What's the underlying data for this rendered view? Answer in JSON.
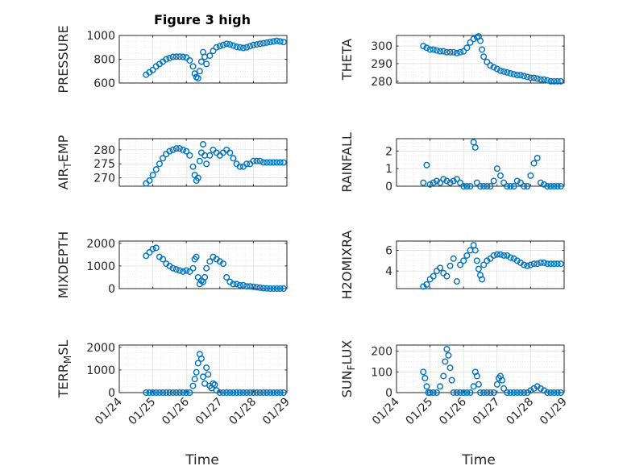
{
  "figure": {
    "title": "Figure 3 high",
    "marker_color": "#0072BD",
    "grid": true,
    "x_tick_labels": [
      "01/24",
      "01/25",
      "01/26",
      "01/27",
      "01/28",
      "01/29"
    ],
    "x_axis_label": "Time"
  },
  "chart_data": [
    {
      "type": "scatter",
      "ylabel": "PRESSURE",
      "ylim": [
        600,
        1000
      ],
      "yticks": [
        600,
        800,
        1000
      ],
      "xlim": [
        0,
        5
      ],
      "x": [
        0.8,
        0.9,
        1.0,
        1.1,
        1.2,
        1.3,
        1.4,
        1.5,
        1.6,
        1.7,
        1.8,
        1.9,
        2.0,
        2.1,
        2.2,
        2.25,
        2.3,
        2.35,
        2.4,
        2.45,
        2.5,
        2.55,
        2.6,
        2.7,
        2.8,
        2.9,
        3.0,
        3.1,
        3.2,
        3.3,
        3.4,
        3.5,
        3.6,
        3.7,
        3.8,
        3.9,
        4.0,
        4.1,
        4.2,
        4.3,
        4.4,
        4.5,
        4.6,
        4.7,
        4.8,
        4.9
      ],
      "y": [
        670,
        690,
        710,
        740,
        760,
        780,
        800,
        810,
        820,
        822,
        822,
        820,
        815,
        790,
        740,
        680,
        650,
        640,
        700,
        780,
        860,
        820,
        760,
        830,
        870,
        900,
        910,
        920,
        930,
        925,
        915,
        905,
        900,
        895,
        900,
        910,
        920,
        925,
        930,
        935,
        940,
        945,
        950,
        955,
        950,
        945
      ]
    },
    {
      "type": "scatter",
      "ylabel": "THETA",
      "ylim": [
        279,
        306
      ],
      "yticks": [
        280,
        290,
        300
      ],
      "xlim": [
        0,
        5
      ],
      "x": [
        0.8,
        0.9,
        1.0,
        1.1,
        1.2,
        1.3,
        1.4,
        1.5,
        1.6,
        1.7,
        1.8,
        1.9,
        2.0,
        2.1,
        2.2,
        2.3,
        2.4,
        2.45,
        2.5,
        2.55,
        2.6,
        2.7,
        2.8,
        2.9,
        3.0,
        3.1,
        3.2,
        3.3,
        3.4,
        3.5,
        3.6,
        3.7,
        3.8,
        3.9,
        4.0,
        4.1,
        4.2,
        4.3,
        4.4,
        4.5,
        4.6,
        4.7,
        4.8,
        4.9
      ],
      "y": [
        300,
        299,
        298,
        298,
        297.5,
        297,
        297,
        296.5,
        296.5,
        296.5,
        296,
        296.5,
        297,
        299,
        302,
        304,
        305,
        305.5,
        303,
        298,
        294,
        291,
        289,
        288,
        287,
        286,
        285.5,
        285,
        284.5,
        284,
        283.5,
        283.5,
        283,
        282.5,
        282,
        282,
        281.5,
        281,
        281,
        280.5,
        280,
        280,
        280,
        280
      ]
    },
    {
      "type": "scatter",
      "ylabel": "AIR_TEMP",
      "ylim": [
        267,
        284
      ],
      "yticks": [
        270,
        275,
        280
      ],
      "xlim": [
        0,
        5
      ],
      "x": [
        0.8,
        0.9,
        1.0,
        1.1,
        1.2,
        1.3,
        1.4,
        1.5,
        1.6,
        1.7,
        1.8,
        1.9,
        2.0,
        2.1,
        2.2,
        2.25,
        2.3,
        2.35,
        2.4,
        2.45,
        2.5,
        2.55,
        2.6,
        2.7,
        2.8,
        2.9,
        3.0,
        3.1,
        3.2,
        3.3,
        3.4,
        3.5,
        3.6,
        3.7,
        3.8,
        3.9,
        4.0,
        4.1,
        4.2,
        4.3,
        4.4,
        4.5,
        4.6,
        4.7,
        4.8,
        4.9
      ],
      "y": [
        268,
        269,
        271,
        273,
        275,
        277,
        278.5,
        279.5,
        280,
        280.5,
        280.5,
        280,
        279.5,
        278,
        274,
        271,
        269,
        270,
        276,
        279,
        282,
        278,
        275,
        278,
        280,
        279,
        278,
        279,
        280,
        279,
        277,
        275,
        274,
        274,
        275,
        275,
        276,
        276,
        276,
        275.5,
        275.5,
        275.5,
        275.5,
        275.5,
        275.5,
        275.5
      ]
    },
    {
      "type": "scatter",
      "ylabel": "RAINFALL",
      "ylim": [
        0,
        2.7
      ],
      "yticks": [
        0,
        1,
        2
      ],
      "xlim": [
        0,
        5
      ],
      "x": [
        0.8,
        0.9,
        1.0,
        1.1,
        1.2,
        1.3,
        1.4,
        1.5,
        1.6,
        1.7,
        1.8,
        1.9,
        2.0,
        2.1,
        2.2,
        2.3,
        2.35,
        2.4,
        2.5,
        2.6,
        2.7,
        2.8,
        2.9,
        3.0,
        3.1,
        3.2,
        3.3,
        3.4,
        3.5,
        3.6,
        3.7,
        3.8,
        3.9,
        4.0,
        4.1,
        4.2,
        4.3,
        4.4,
        4.5,
        4.6,
        4.7,
        4.8,
        4.9
      ],
      "y": [
        0.2,
        1.2,
        0.1,
        0.2,
        0.3,
        0.2,
        0.4,
        0.3,
        0.2,
        0.3,
        0.4,
        0.2,
        0,
        0,
        0,
        2.5,
        2.2,
        0.2,
        0,
        0,
        0,
        0,
        0.3,
        1.0,
        0.6,
        0.2,
        0,
        0,
        0,
        0.3,
        0.2,
        0,
        0,
        0.6,
        1.3,
        1.6,
        0.2,
        0.1,
        0,
        0,
        0,
        0,
        0
      ]
    },
    {
      "type": "scatter",
      "ylabel": "MIXDEPTH",
      "ylim": [
        0,
        2100
      ],
      "yticks": [
        0,
        1000,
        2000
      ],
      "xlim": [
        0,
        5
      ],
      "x": [
        0.8,
        0.9,
        1.0,
        1.1,
        1.2,
        1.3,
        1.4,
        1.5,
        1.6,
        1.7,
        1.8,
        1.9,
        2.0,
        2.1,
        2.2,
        2.25,
        2.3,
        2.35,
        2.4,
        2.45,
        2.5,
        2.55,
        2.6,
        2.7,
        2.8,
        2.9,
        3.0,
        3.1,
        3.2,
        3.3,
        3.4,
        3.5,
        3.6,
        3.7,
        3.8,
        3.9,
        4.0,
        4.1,
        4.2,
        4.3,
        4.4,
        4.5,
        4.6,
        4.7,
        4.8,
        4.9
      ],
      "y": [
        1450,
        1600,
        1750,
        1800,
        1400,
        1300,
        1100,
        1000,
        900,
        850,
        800,
        750,
        800,
        750,
        900,
        1300,
        1400,
        500,
        200,
        350,
        300,
        500,
        900,
        1200,
        1400,
        1300,
        1200,
        1100,
        500,
        300,
        200,
        200,
        150,
        150,
        100,
        100,
        80,
        60,
        40,
        20,
        10,
        0,
        0,
        0,
        0,
        0
      ]
    },
    {
      "type": "scatter",
      "ylabel": "H2OMIXRA",
      "ylim": [
        2.3,
        6.9
      ],
      "yticks": [
        4,
        6
      ],
      "xlim": [
        0,
        5
      ],
      "x": [
        0.8,
        0.9,
        1.0,
        1.1,
        1.2,
        1.3,
        1.4,
        1.5,
        1.6,
        1.7,
        1.8,
        1.9,
        2.0,
        2.1,
        2.2,
        2.3,
        2.35,
        2.4,
        2.45,
        2.5,
        2.55,
        2.6,
        2.7,
        2.8,
        2.9,
        3.0,
        3.1,
        3.2,
        3.3,
        3.4,
        3.5,
        3.6,
        3.7,
        3.8,
        3.9,
        4.0,
        4.1,
        4.2,
        4.3,
        4.4,
        4.5,
        4.6,
        4.7,
        4.8,
        4.9
      ],
      "y": [
        2.5,
        2.7,
        3.2,
        3.5,
        4.0,
        4.3,
        3.8,
        3.5,
        4.5,
        5.2,
        3.0,
        4.6,
        5.0,
        5.5,
        6.0,
        6.5,
        6.0,
        5.0,
        4.2,
        3.6,
        3.2,
        4.6,
        5.0,
        5.2,
        5.5,
        5.6,
        5.6,
        5.5,
        5.5,
        5.3,
        5.2,
        5.0,
        4.8,
        4.6,
        4.5,
        4.6,
        4.7,
        4.7,
        4.8,
        4.8,
        4.7,
        4.7,
        4.7,
        4.7,
        4.7
      ]
    },
    {
      "type": "scatter",
      "ylabel": "TERR_MSL",
      "ylim": [
        0,
        2100
      ],
      "yticks": [
        0,
        1000,
        2000
      ],
      "xlim": [
        0,
        5
      ],
      "x": [
        0.8,
        0.9,
        1.0,
        1.1,
        1.2,
        1.3,
        1.4,
        1.5,
        1.6,
        1.7,
        1.8,
        1.9,
        2.0,
        2.1,
        2.2,
        2.25,
        2.3,
        2.35,
        2.4,
        2.45,
        2.5,
        2.55,
        2.6,
        2.65,
        2.7,
        2.75,
        2.8,
        2.85,
        2.9,
        3.0,
        3.1,
        3.2,
        3.3,
        3.4,
        3.5,
        3.6,
        3.7,
        3.8,
        3.9,
        4.0,
        4.1,
        4.2,
        4.3,
        4.4,
        4.5,
        4.6,
        4.7,
        4.8,
        4.9
      ],
      "y": [
        0,
        0,
        0,
        0,
        0,
        0,
        0,
        0,
        0,
        0,
        0,
        0,
        0,
        0,
        300,
        600,
        900,
        1300,
        1700,
        1500,
        700,
        400,
        1100,
        800,
        300,
        200,
        400,
        350,
        100,
        0,
        0,
        0,
        0,
        0,
        0,
        0,
        0,
        0,
        0,
        0,
        0,
        0,
        0,
        0,
        0,
        0,
        0,
        0,
        0
      ]
    },
    {
      "type": "scatter",
      "ylabel": "SUN_FLUX",
      "ylim": [
        0,
        230
      ],
      "yticks": [
        0,
        100,
        200
      ],
      "xlim": [
        0,
        5
      ],
      "x": [
        0.8,
        0.85,
        0.9,
        0.95,
        1.0,
        1.1,
        1.2,
        1.3,
        1.4,
        1.45,
        1.5,
        1.55,
        1.6,
        1.65,
        1.7,
        1.8,
        1.9,
        2.0,
        2.1,
        2.2,
        2.3,
        2.35,
        2.4,
        2.45,
        2.5,
        2.6,
        2.7,
        2.8,
        2.9,
        3.0,
        3.05,
        3.1,
        3.15,
        3.2,
        3.3,
        3.4,
        3.5,
        3.6,
        3.7,
        3.8,
        3.9,
        4.0,
        4.1,
        4.2,
        4.3,
        4.4,
        4.5,
        4.6,
        4.7,
        4.8,
        4.9
      ],
      "y": [
        100,
        70,
        30,
        0,
        0,
        0,
        0,
        30,
        80,
        150,
        210,
        180,
        120,
        60,
        0,
        0,
        0,
        0,
        0,
        0,
        30,
        100,
        80,
        40,
        0,
        0,
        0,
        0,
        0,
        40,
        70,
        80,
        60,
        20,
        0,
        0,
        0,
        0,
        0,
        0,
        0,
        10,
        20,
        30,
        20,
        10,
        0,
        0,
        0,
        0,
        0
      ]
    }
  ]
}
